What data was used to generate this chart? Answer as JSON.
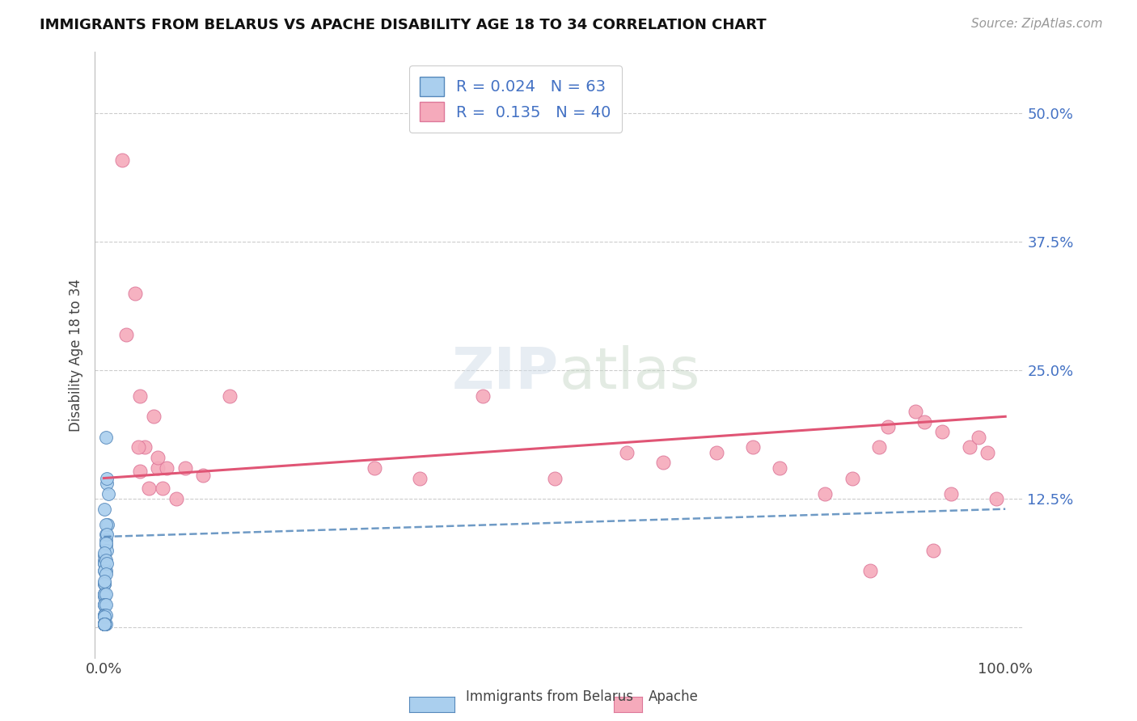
{
  "title": "IMMIGRANTS FROM BELARUS VS APACHE DISABILITY AGE 18 TO 34 CORRELATION CHART",
  "source": "Source: ZipAtlas.com",
  "ylabel": "Disability Age 18 to 34",
  "legend_labels": [
    "Immigrants from Belarus",
    "Apache"
  ],
  "R_belarus": 0.024,
  "N_belarus": 63,
  "R_apache": 0.135,
  "N_apache": 40,
  "xlim": [
    -0.01,
    1.02
  ],
  "ylim": [
    -0.03,
    0.56
  ],
  "yticks": [
    0.0,
    0.125,
    0.25,
    0.375,
    0.5
  ],
  "ytick_labels": [
    "",
    "12.5%",
    "25.0%",
    "37.5%",
    "50.0%"
  ],
  "xticks": [
    0.0,
    1.0
  ],
  "xtick_labels": [
    "0.0%",
    "100.0%"
  ],
  "color_belarus": "#aacfee",
  "color_apache": "#f5aabb",
  "trendline_color_belarus": "#5588bb",
  "trendline_color_apache": "#e05575",
  "background_color": "#ffffff",
  "watermark": "ZIPatlas",
  "belarus_x": [
    0.002,
    0.003,
    0.002,
    0.004,
    0.002,
    0.003,
    0.005,
    0.002,
    0.002,
    0.003,
    0.001,
    0.001,
    0.002,
    0.001,
    0.003,
    0.001,
    0.002,
    0.001,
    0.001,
    0.001,
    0.001,
    0.002,
    0.001,
    0.001,
    0.001,
    0.001,
    0.003,
    0.001,
    0.001,
    0.001,
    0.002,
    0.001,
    0.001,
    0.001,
    0.001,
    0.002,
    0.001,
    0.001,
    0.001,
    0.002,
    0.001,
    0.001,
    0.001,
    0.001,
    0.001,
    0.002,
    0.001,
    0.001,
    0.001,
    0.001,
    0.001,
    0.001,
    0.002,
    0.001,
    0.001,
    0.001,
    0.001,
    0.001,
    0.001,
    0.001,
    0.001,
    0.001,
    0.001
  ],
  "belarus_y": [
    0.185,
    0.14,
    0.09,
    0.1,
    0.08,
    0.145,
    0.13,
    0.1,
    0.085,
    0.09,
    0.07,
    0.065,
    0.055,
    0.115,
    0.075,
    0.062,
    0.082,
    0.072,
    0.062,
    0.055,
    0.055,
    0.065,
    0.042,
    0.042,
    0.032,
    0.032,
    0.062,
    0.032,
    0.03,
    0.042,
    0.052,
    0.042,
    0.032,
    0.022,
    0.022,
    0.032,
    0.022,
    0.022,
    0.012,
    0.022,
    0.012,
    0.012,
    0.012,
    0.004,
    0.004,
    0.012,
    0.003,
    0.003,
    0.003,
    0.003,
    0.003,
    0.003,
    0.003,
    0.003,
    0.003,
    0.003,
    0.01,
    0.003,
    0.003,
    0.003,
    0.003,
    0.003,
    0.045
  ],
  "apache_x": [
    0.02,
    0.035,
    0.025,
    0.04,
    0.05,
    0.045,
    0.06,
    0.065,
    0.08,
    0.055,
    0.04,
    0.07,
    0.038,
    0.06,
    0.09,
    0.11,
    0.14,
    0.42,
    0.3,
    0.35,
    0.5,
    0.58,
    0.62,
    0.68,
    0.72,
    0.75,
    0.8,
    0.83,
    0.87,
    0.9,
    0.86,
    0.91,
    0.93,
    0.96,
    0.97,
    0.98,
    0.99,
    0.94,
    0.92,
    0.85
  ],
  "apache_y": [
    0.455,
    0.325,
    0.285,
    0.225,
    0.135,
    0.175,
    0.155,
    0.135,
    0.125,
    0.205,
    0.152,
    0.155,
    0.175,
    0.165,
    0.155,
    0.148,
    0.225,
    0.225,
    0.155,
    0.145,
    0.145,
    0.17,
    0.16,
    0.17,
    0.175,
    0.155,
    0.13,
    0.145,
    0.195,
    0.21,
    0.175,
    0.2,
    0.19,
    0.175,
    0.185,
    0.17,
    0.125,
    0.13,
    0.075,
    0.055
  ]
}
